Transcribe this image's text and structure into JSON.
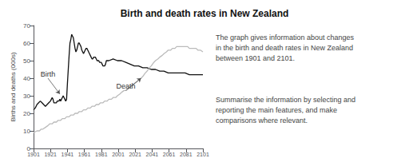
{
  "chart_data": {
    "type": "line",
    "title": "Birth and death rates in New Zealand",
    "ylabel": "Births and deaths (000s)",
    "xlim": [
      1901,
      2101
    ],
    "ylim": [
      0,
      70
    ],
    "yticks": [
      0,
      10,
      20,
      30,
      40,
      50,
      60,
      70
    ],
    "xticks": [
      1901,
      1921,
      1941,
      1961,
      1981,
      2001,
      2021,
      2041,
      2061,
      2081,
      2101
    ],
    "grid": false,
    "series": [
      {
        "color": "#111111",
        "x": [
          1901,
          1903,
          1905,
          1907,
          1909,
          1911,
          1913,
          1915,
          1917,
          1919,
          1921,
          1922,
          1923,
          1924,
          1925,
          1926,
          1927,
          1928,
          1929,
          1930,
          1931,
          1932,
          1933,
          1934,
          1935,
          1936,
          1937,
          1938,
          1939,
          1940,
          1941,
          1942,
          1943,
          1944,
          1945,
          1946,
          1947,
          1948,
          1949,
          1950,
          1951,
          1952,
          1953,
          1954,
          1955,
          1956,
          1957,
          1958,
          1959,
          1960,
          1961,
          1962,
          1963,
          1964,
          1965,
          1966,
          1967,
          1968,
          1969,
          1970,
          1971,
          1972,
          1973,
          1974,
          1975,
          1976,
          1977,
          1978,
          1979,
          1980,
          1981,
          1982,
          1983,
          1984,
          1985,
          1986,
          1987,
          1988,
          1989,
          1990,
          1995,
          2000,
          2005,
          2010,
          2015,
          2020,
          2025,
          2030,
          2035,
          2040,
          2045,
          2050,
          2055,
          2060,
          2065,
          2070,
          2075,
          2080,
          2085,
          2090,
          2095,
          2101
        ],
        "values": [
          22,
          23,
          25,
          26,
          27,
          26,
          25,
          24,
          25,
          26,
          27,
          28,
          29,
          28,
          26,
          26,
          26,
          26,
          27,
          27,
          27,
          28,
          27,
          28,
          29,
          30,
          29,
          28,
          27,
          28,
          37,
          45,
          53,
          60,
          62,
          65,
          64,
          63,
          60,
          57,
          55,
          56,
          58,
          60,
          60,
          59,
          58,
          56,
          55,
          54,
          55,
          56,
          57,
          57,
          56,
          55,
          54,
          53,
          52,
          51,
          51,
          52,
          52,
          52,
          51,
          50,
          50,
          50,
          49,
          49,
          49,
          48,
          47,
          47,
          47,
          48,
          50,
          50,
          50,
          50,
          51,
          50,
          50,
          49,
          48,
          47,
          47,
          46,
          46,
          45,
          45,
          44,
          44,
          43,
          43,
          43,
          43,
          43,
          42,
          42,
          42,
          42
        ]
      },
      {
        "color": "#bbbbbb",
        "x": [
          1901,
          1905,
          1908,
          1910,
          1912,
          1915,
          1918,
          1920,
          1923,
          1925,
          1928,
          1930,
          1933,
          1935,
          1938,
          1940,
          1943,
          1945,
          1948,
          1950,
          1953,
          1955,
          1958,
          1960,
          1963,
          1965,
          1968,
          1970,
          1973,
          1975,
          1978,
          1980,
          1983,
          1985,
          1988,
          1990,
          1993,
          1995,
          1998,
          2000,
          2003,
          2005,
          2008,
          2010,
          2013,
          2015,
          2018,
          2020,
          2023,
          2025,
          2028,
          2030,
          2033,
          2035,
          2038,
          2040,
          2043,
          2045,
          2048,
          2050,
          2053,
          2055,
          2058,
          2060,
          2063,
          2065,
          2068,
          2070,
          2073,
          2075,
          2078,
          2080,
          2083,
          2085,
          2088,
          2090,
          2093,
          2095,
          2098,
          2101
        ],
        "values": [
          9,
          10,
          10,
          11,
          11,
          12,
          13,
          14,
          14,
          15,
          15,
          16,
          16,
          17,
          17,
          18,
          18,
          19,
          19,
          20,
          20,
          21,
          21,
          22,
          22,
          23,
          23,
          24,
          24,
          25,
          25,
          26,
          26,
          27,
          27,
          28,
          28,
          29,
          29,
          30,
          31,
          32,
          33,
          33,
          34,
          35,
          36,
          37,
          38,
          39,
          40,
          41,
          43,
          44,
          46,
          47,
          49,
          50,
          51,
          52,
          53,
          54,
          55,
          56,
          56,
          57,
          57,
          58,
          58,
          58,
          58,
          58,
          58,
          57,
          57,
          57,
          57,
          56,
          56,
          55
        ]
      }
    ],
    "annotations": [
      {
        "text": "Birth",
        "x": 1932,
        "y": 31,
        "text_x": 1918,
        "text_y": 40
      },
      {
        "text": "Death",
        "x": 2028,
        "y": 40,
        "text_x": 2010,
        "text_y": 33
      }
    ],
    "text_blocks": [
      "The graph gives information about changes\nin the birth and death rates in New Zealand\nbetween 1901 and 2101.",
      "Summarise the information by selecting and\nreporting the main features, and make\ncomparisons where relevant."
    ]
  }
}
